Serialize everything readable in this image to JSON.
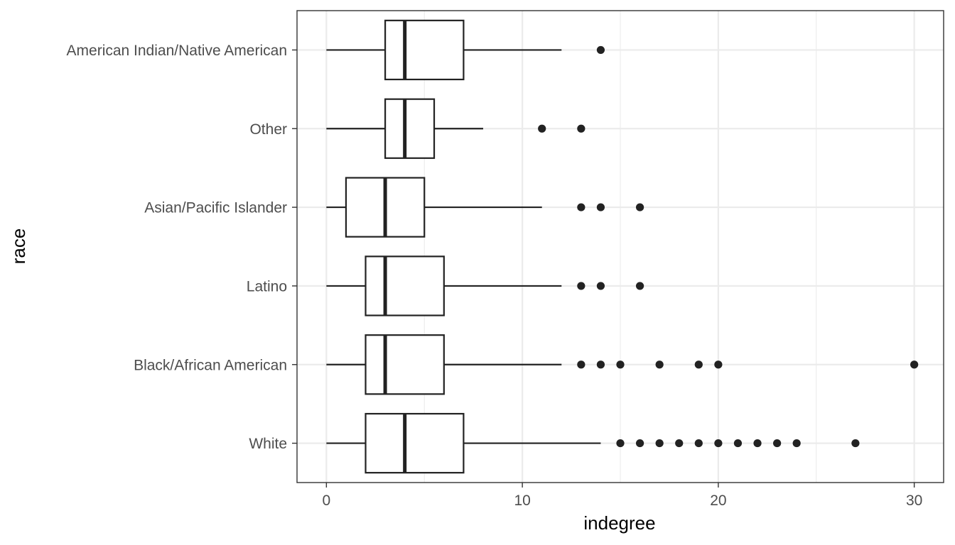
{
  "chart_data": {
    "type": "boxplot",
    "orientation": "horizontal",
    "title": "",
    "xlabel": "indegree",
    "ylabel": "race",
    "xlim": [
      -1.5,
      31.5
    ],
    "x_ticks": [
      0,
      10,
      20,
      30
    ],
    "x_minor_ticks": [
      5,
      15,
      25
    ],
    "grid": true,
    "legend": "none",
    "colors": {
      "box_fill": "#ffffff",
      "box_stroke": "#222222",
      "outlier": "#222222",
      "grid": "#ebebeb",
      "panel_border": "#333333",
      "tick_label": "#4d4d4d",
      "axis_title": "#000000"
    },
    "categories": [
      "American Indian/Native American",
      "Other",
      "Asian/Pacific Islander",
      "Latino",
      "Black/African American",
      "White"
    ],
    "boxes": [
      {
        "category": "American Indian/Native American",
        "whisker_low": 0,
        "q1": 3,
        "median": 4,
        "q3": 7,
        "whisker_high": 12,
        "outliers": [
          14
        ]
      },
      {
        "category": "Other",
        "whisker_low": 0,
        "q1": 3,
        "median": 4,
        "q3": 5.5,
        "whisker_high": 8,
        "outliers": [
          11,
          13
        ]
      },
      {
        "category": "Asian/Pacific Islander",
        "whisker_low": 0,
        "q1": 1,
        "median": 3,
        "q3": 5,
        "whisker_high": 11,
        "outliers": [
          13,
          14,
          16
        ]
      },
      {
        "category": "Latino",
        "whisker_low": 0,
        "q1": 2,
        "median": 3,
        "q3": 6,
        "whisker_high": 12,
        "outliers": [
          13,
          14,
          16
        ]
      },
      {
        "category": "Black/African American",
        "whisker_low": 0,
        "q1": 2,
        "median": 3,
        "q3": 6,
        "whisker_high": 12,
        "outliers": [
          13,
          14,
          15,
          17,
          19,
          20,
          30
        ]
      },
      {
        "category": "White",
        "whisker_low": 0,
        "q1": 2,
        "median": 4,
        "q3": 7,
        "whisker_high": 14,
        "outliers": [
          15,
          16,
          17,
          18,
          19,
          20,
          21,
          22,
          23,
          24,
          27
        ]
      }
    ]
  }
}
